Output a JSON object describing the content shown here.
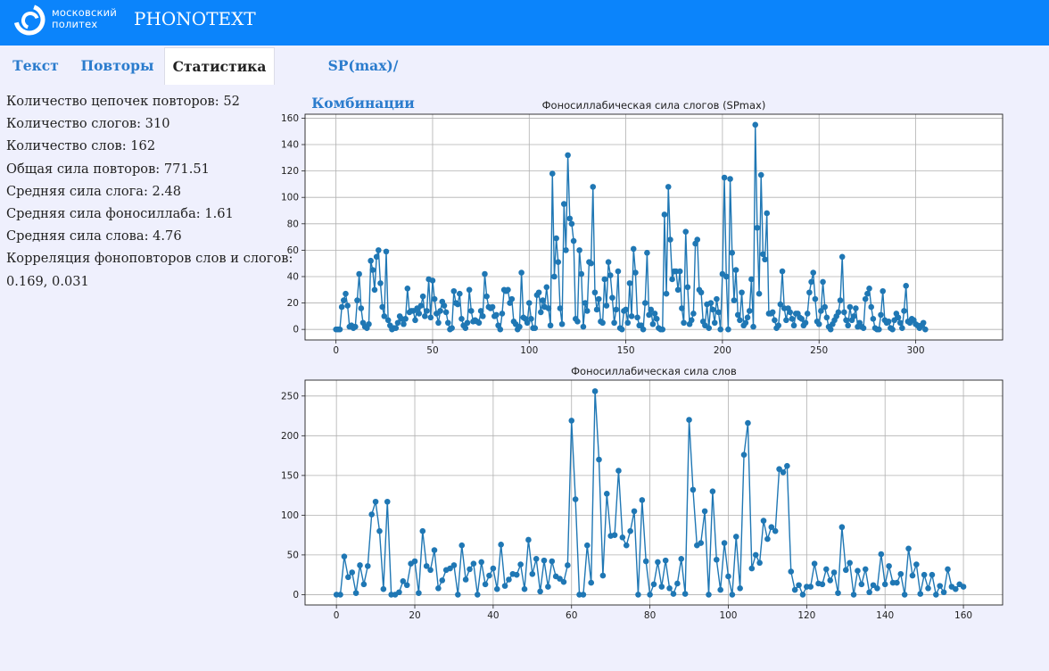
{
  "header": {
    "logo_line1": "московский",
    "logo_line2": "политех",
    "app_title": "PHONOTEXT"
  },
  "tabs": [
    {
      "label": "Текст"
    },
    {
      "label": "Повторы"
    },
    {
      "label": "Статистика"
    },
    {
      "label": "SP(max)/Комбинации"
    }
  ],
  "stats": {
    "lines": [
      "Количество цепочек повторов: 52",
      "Количество слогов: 310",
      "Количество слов: 162",
      "Общая сила повторов: 771.51",
      "Средняя сила слога: 2.48",
      "Средняя сила фоносиллаба: 1.61",
      "Средняя сила слова: 4.76",
      "Корреляция фоноповторов слов и слогов:",
      "0.169, 0.031"
    ]
  },
  "colors": {
    "header_bg": "#0b84fb",
    "page_bg": "#eff0fd",
    "series": "#1f77b4",
    "tab_text": "#2b7ccd"
  },
  "chart_data": [
    {
      "type": "line",
      "title": "Фоносиллабическая сила слогов (SPmax)",
      "xlim": [
        -16,
        345
      ],
      "ylim": [
        -8,
        163
      ],
      "xticks": [
        0,
        50,
        100,
        150,
        200,
        250,
        300
      ],
      "yticks": [
        0,
        20,
        40,
        60,
        80,
        100,
        120,
        140,
        160
      ],
      "grid": true,
      "markers": true,
      "series": [
        {
          "name": "SPmax",
          "values": [
            0,
            0,
            0,
            17,
            22,
            27,
            18,
            2,
            3,
            1,
            2,
            22,
            42,
            16,
            5,
            2,
            1,
            4,
            52,
            45,
            30,
            55,
            60,
            35,
            17,
            10,
            59,
            7,
            3,
            0,
            1,
            1,
            5,
            10,
            8,
            4,
            8,
            31,
            13,
            14,
            14,
            7,
            16,
            12,
            18,
            25,
            10,
            14,
            38,
            9,
            37,
            23,
            12,
            5,
            14,
            21,
            18,
            13,
            5,
            0,
            1,
            29,
            20,
            19,
            27,
            8,
            3,
            1,
            5,
            30,
            14,
            6,
            7,
            6,
            5,
            14,
            10,
            42,
            25,
            17,
            16,
            17,
            10,
            11,
            3,
            0,
            12,
            30,
            29,
            30,
            20,
            23,
            6,
            4,
            0,
            2,
            43,
            9,
            8,
            5,
            20,
            8,
            1,
            1,
            26,
            28,
            13,
            22,
            17,
            32,
            16,
            3,
            118,
            40,
            69,
            51,
            16,
            4,
            95,
            60,
            132,
            84,
            80,
            67,
            8,
            6,
            60,
            42,
            2,
            20,
            14,
            51,
            50,
            108,
            28,
            15,
            23,
            6,
            5,
            38,
            18,
            51,
            41,
            24,
            5,
            15,
            44,
            1,
            0,
            14,
            15,
            5,
            35,
            10,
            61,
            43,
            9,
            3,
            3,
            0,
            20,
            58,
            11,
            15,
            4,
            12,
            8,
            1,
            0,
            0,
            87,
            27,
            108,
            68,
            38,
            44,
            44,
            30,
            44,
            16,
            5,
            74,
            32,
            4,
            7,
            12,
            65,
            68,
            30,
            28,
            6,
            3,
            19,
            1,
            20,
            15,
            5,
            23,
            13,
            0,
            42,
            115,
            40,
            0,
            114,
            58,
            22,
            45,
            11,
            7,
            28,
            3,
            5,
            9,
            14,
            38,
            2,
            155,
            77,
            27,
            117,
            57,
            53,
            88,
            12,
            12,
            13,
            7,
            1,
            3,
            19,
            44,
            16,
            7,
            16,
            13,
            8,
            3,
            12,
            12,
            9,
            8,
            3,
            5,
            12,
            28,
            36,
            43,
            23,
            6,
            4,
            14,
            36,
            17,
            9,
            2,
            0,
            4,
            7,
            10,
            13,
            22,
            55,
            13,
            7,
            3,
            17,
            7,
            10,
            16,
            2,
            5,
            2,
            1,
            23,
            27,
            31,
            17,
            8,
            1,
            0,
            0,
            11,
            29,
            7,
            5,
            6,
            1,
            0,
            7,
            12,
            9,
            5,
            1,
            14,
            33,
            6,
            5,
            8,
            7,
            4,
            3,
            1,
            3,
            5,
            0
          ]
        }
      ]
    },
    {
      "type": "line",
      "title": "Фоносиллабическая сила слов",
      "xlim": [
        -8,
        170
      ],
      "ylim": [
        -13,
        270
      ],
      "xticks": [
        0,
        20,
        40,
        60,
        80,
        100,
        120,
        140,
        160
      ],
      "yticks": [
        0,
        50,
        100,
        150,
        200,
        250
      ],
      "grid": true,
      "markers": true,
      "series": [
        {
          "name": "words",
          "values": [
            0,
            0,
            48,
            22,
            28,
            2,
            37,
            13,
            36,
            101,
            117,
            80,
            7,
            117,
            0,
            0,
            3,
            17,
            12,
            39,
            42,
            2,
            80,
            36,
            31,
            56,
            8,
            18,
            31,
            33,
            37,
            0,
            62,
            19,
            32,
            39,
            0,
            41,
            13,
            24,
            33,
            7,
            63,
            11,
            19,
            26,
            25,
            38,
            7,
            69,
            26,
            45,
            4,
            43,
            10,
            42,
            23,
            20,
            16,
            37,
            219,
            120,
            0,
            0,
            62,
            15,
            256,
            170,
            24,
            127,
            74,
            75,
            156,
            72,
            62,
            80,
            105,
            0,
            119,
            42,
            0,
            13,
            41,
            10,
            43,
            8,
            1,
            14,
            45,
            1,
            220,
            132,
            62,
            65,
            105,
            0,
            130,
            44,
            6,
            65,
            23,
            0,
            73,
            8,
            176,
            216,
            33,
            50,
            40,
            93,
            70,
            85,
            80,
            158,
            154,
            162,
            29,
            6,
            12,
            0,
            10,
            10,
            39,
            14,
            13,
            32,
            18,
            28,
            2,
            85,
            31,
            40,
            0,
            30,
            13,
            32,
            3,
            12,
            8,
            51,
            13,
            36,
            15,
            15,
            26,
            0,
            58,
            24,
            38,
            1,
            25,
            8,
            25,
            0,
            11,
            3,
            32,
            10,
            7,
            13,
            10
          ]
        }
      ]
    }
  ]
}
